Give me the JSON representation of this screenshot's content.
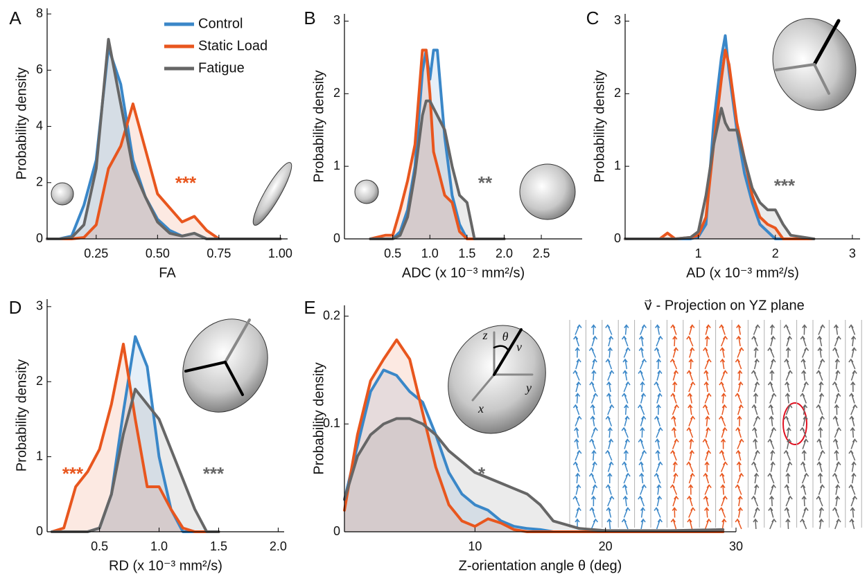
{
  "chart_data": [
    {
      "type": "line",
      "label": "A",
      "xlabel": "FA",
      "ylabel": "Probability density",
      "fill": true,
      "legend": "upper right",
      "xlim": [
        0.05,
        1.03
      ],
      "ylim": [
        0,
        8.2
      ],
      "xticks": [
        0.25,
        {
          "value": 0.5,
          "label": "0.50"
        },
        0.75,
        {
          "value": 1,
          "label": "1.00"
        }
      ],
      "yticks": [
        0,
        2,
        4,
        6,
        8
      ],
      "x": [
        0.05,
        0.1,
        0.15,
        0.2,
        0.25,
        0.3,
        0.35,
        0.4,
        0.45,
        0.5,
        0.55,
        0.6,
        0.65,
        0.7,
        0.75,
        0.8,
        1.0
      ],
      "series": [
        {
          "name": "Control",
          "color": "#3a87c8",
          "values": [
            0,
            0,
            0.1,
            1.2,
            2.8,
            6.8,
            5.5,
            2.8,
            1.5,
            0.7,
            0.3,
            0.1,
            0.2,
            0,
            0,
            0,
            0
          ]
        },
        {
          "name": "Static Load",
          "color": "#e8561e",
          "values": [
            0,
            0,
            0,
            0.05,
            0.5,
            2.5,
            3.3,
            4.8,
            3.2,
            1.6,
            1.1,
            0.6,
            0.8,
            0.3,
            0,
            0,
            0
          ]
        },
        {
          "name": "Fatigue",
          "color": "#666666",
          "values": [
            0,
            0,
            0.05,
            0.5,
            2.5,
            7.1,
            4.8,
            2.5,
            1.5,
            0.6,
            0.2,
            0.1,
            0.2,
            0,
            0,
            0,
            0
          ]
        }
      ],
      "annotations": [
        {
          "text": "***",
          "color": "#e8561e"
        }
      ]
    },
    {
      "type": "line",
      "label": "B",
      "xlabel": "ADC (x 10⁻³ mm²/s)",
      "ylabel": "Probability density",
      "fill": true,
      "xlim": [
        -0.15,
        3.05
      ],
      "ylim": [
        0,
        3.1
      ],
      "xticks": [
        0.5,
        {
          "value": 1,
          "label": "1.0"
        },
        1.5,
        {
          "value": 2,
          "label": "2.0"
        },
        2.5
      ],
      "yticks": [
        0,
        1,
        2,
        3
      ],
      "x": [
        0.2,
        0.4,
        0.5,
        0.6,
        0.7,
        0.8,
        0.9,
        0.95,
        1.0,
        1.05,
        1.1,
        1.2,
        1.3,
        1.4,
        1.5,
        1.6,
        2.0
      ],
      "series": [
        {
          "color": "#3a87c8",
          "values": [
            0,
            0,
            0,
            0.1,
            0.4,
            1.0,
            2.3,
            2.6,
            2.2,
            2.6,
            2.6,
            1.4,
            0.6,
            0.2,
            0,
            0,
            0
          ]
        },
        {
          "color": "#e8561e",
          "values": [
            0,
            0.05,
            0.05,
            0.4,
            0.8,
            1.3,
            2.6,
            2.6,
            2.0,
            1.2,
            1.0,
            0.6,
            0.5,
            0.1,
            0,
            0,
            0
          ]
        },
        {
          "color": "#666666",
          "values": [
            0,
            0,
            0,
            0.05,
            0.3,
            0.9,
            1.7,
            1.9,
            1.9,
            1.8,
            1.7,
            1.5,
            1.0,
            0.6,
            0.5,
            0,
            0
          ]
        }
      ],
      "annotations": [
        {
          "text": "**",
          "color": "#666666"
        }
      ]
    },
    {
      "type": "line",
      "label": "C",
      "xlabel": "AD (x 10⁻³ mm²/s)",
      "ylabel": "Probability density",
      "fill": true,
      "xlim": [
        0.05,
        3.1
      ],
      "ylim": [
        0,
        3.1
      ],
      "xticks": [
        1,
        2,
        3
      ],
      "yticks": [
        0,
        1,
        2,
        3
      ],
      "x": [
        0.05,
        0.5,
        0.6,
        0.7,
        0.9,
        1.0,
        1.1,
        1.2,
        1.3,
        1.35,
        1.4,
        1.5,
        1.6,
        1.7,
        1.8,
        1.9,
        2.0,
        2.1,
        2.2,
        2.5
      ],
      "series": [
        {
          "color": "#3a87c8",
          "values": [
            0,
            0,
            0,
            0,
            0,
            0.03,
            0.2,
            1.6,
            2.5,
            2.8,
            2.3,
            1.5,
            0.9,
            0.5,
            0.2,
            0.1,
            0,
            0,
            0,
            0
          ]
        },
        {
          "color": "#e8561e",
          "values": [
            0,
            0,
            0.08,
            0,
            0.02,
            0.05,
            0.3,
            1.3,
            2.2,
            2.6,
            2.4,
            1.6,
            1.1,
            0.6,
            0.3,
            0.2,
            0.15,
            0,
            0,
            0
          ]
        },
        {
          "color": "#666666",
          "values": [
            0,
            0,
            0,
            0,
            0.02,
            0.1,
            0.6,
            1.3,
            1.8,
            1.6,
            1.5,
            1.5,
            1.1,
            0.7,
            0.5,
            0.4,
            0.4,
            0.2,
            0.05,
            0
          ]
        }
      ],
      "annotations": [
        {
          "text": "***",
          "color": "#666666"
        }
      ]
    },
    {
      "type": "line",
      "label": "D",
      "xlabel": "RD (x 10⁻³ mm²/s)",
      "ylabel": "Probability density",
      "fill": true,
      "xlim": [
        0.06,
        2.05
      ],
      "ylim": [
        0,
        3.1
      ],
      "xticks": [
        0.5,
        {
          "value": 1,
          "label": "1.0"
        },
        1.5,
        {
          "value": 2,
          "label": "2.0"
        }
      ],
      "yticks": [
        0,
        1,
        2,
        3
      ],
      "x": [
        0.1,
        0.2,
        0.3,
        0.4,
        0.5,
        0.6,
        0.7,
        0.8,
        0.9,
        1.0,
        1.1,
        1.2,
        1.3,
        1.4,
        1.5
      ],
      "series": [
        {
          "color": "#3a87c8",
          "values": [
            0,
            0,
            0,
            0,
            0.05,
            0.5,
            1.6,
            2.6,
            2.2,
            1.0,
            0.3,
            0,
            0,
            0,
            0
          ]
        },
        {
          "color": "#e8561e",
          "values": [
            0,
            0.05,
            0.6,
            0.8,
            1.1,
            1.7,
            2.5,
            1.5,
            0.6,
            0.6,
            0.3,
            0.05,
            0,
            0,
            0
          ]
        },
        {
          "color": "#666666",
          "values": [
            0,
            0,
            0,
            0,
            0.05,
            0.5,
            1.3,
            1.9,
            1.7,
            1.5,
            1.1,
            0.7,
            0.3,
            0,
            0
          ]
        }
      ],
      "annotations": [
        {
          "text": "***",
          "color": "#e8561e"
        },
        {
          "text": "***",
          "color": "#666666"
        }
      ]
    },
    {
      "type": "line",
      "label": "E",
      "xlabel": "Z-orientation angle θ (deg)",
      "ylabel": "Probability density",
      "fill": true,
      "subtitle": "v⃗ - Projection on YZ plane",
      "inset_labels": [
        "z",
        "θ",
        "v⃗",
        "y",
        "x"
      ],
      "xlim": [
        0,
        30
      ],
      "ylim": [
        0,
        0.21
      ],
      "xticks": [
        10,
        20,
        30
      ],
      "yticks": [
        0,
        0.1,
        0.2
      ],
      "x": [
        0,
        1,
        2,
        3,
        4,
        5,
        6,
        7,
        8,
        9,
        10,
        11,
        12,
        13,
        14,
        15,
        16,
        18,
        20,
        25,
        29
      ],
      "series": [
        {
          "color": "#3a87c8",
          "values": [
            0.03,
            0.08,
            0.13,
            0.15,
            0.145,
            0.13,
            0.12,
            0.09,
            0.055,
            0.035,
            0.025,
            0.02,
            0.01,
            0.005,
            0.003,
            0.002,
            0,
            0,
            0,
            0,
            0
          ]
        },
        {
          "color": "#e8561e",
          "values": [
            0.02,
            0.09,
            0.14,
            0.16,
            0.178,
            0.16,
            0.11,
            0.06,
            0.025,
            0.01,
            0.005,
            0.012,
            0.008,
            0.002,
            0,
            0,
            0,
            0,
            0,
            0,
            0
          ]
        },
        {
          "color": "#666666",
          "values": [
            0.03,
            0.07,
            0.09,
            0.1,
            0.105,
            0.105,
            0.1,
            0.09,
            0.075,
            0.065,
            0.055,
            0.05,
            0.045,
            0.04,
            0.035,
            0.025,
            0.01,
            0.003,
            0.001,
            0.001,
            0.002
          ]
        }
      ],
      "annotations": [
        {
          "text": "*",
          "color": "#666666"
        }
      ]
    }
  ]
}
